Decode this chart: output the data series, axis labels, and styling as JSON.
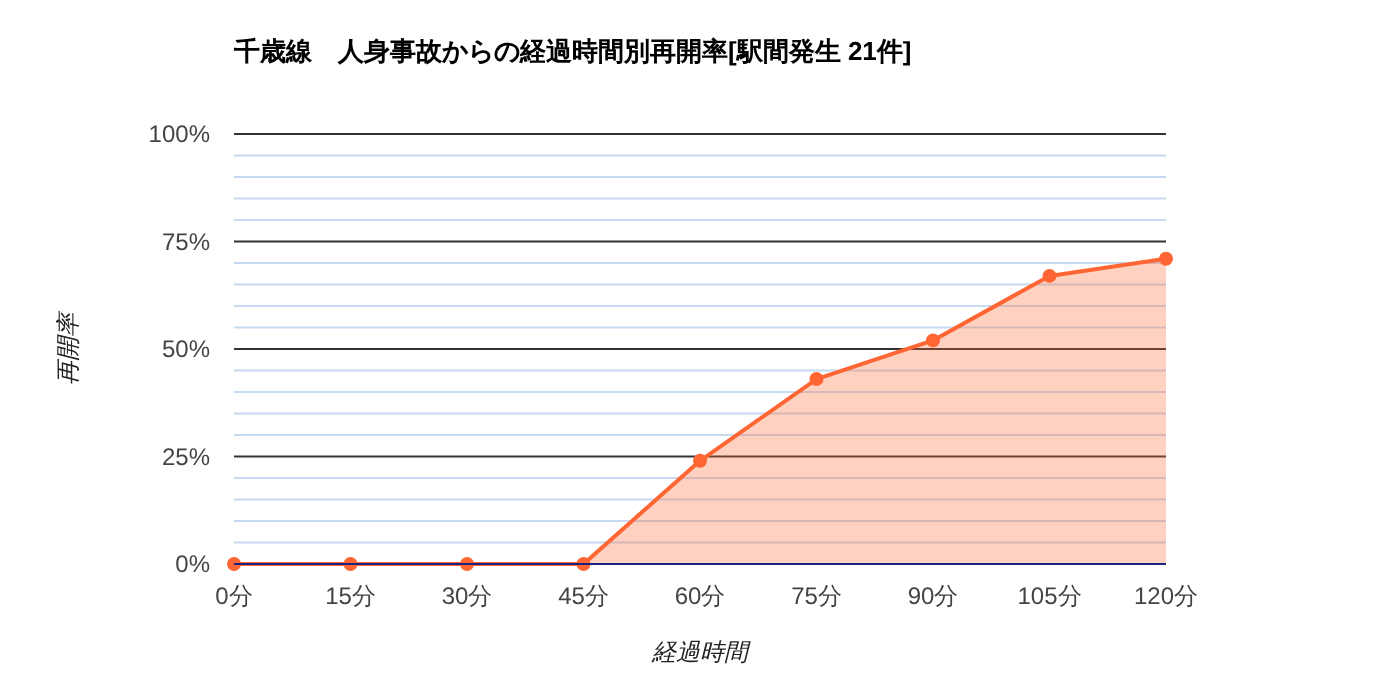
{
  "chart_data": {
    "type": "area",
    "title": "千歳線　人身事故からの経過時間別再開率[駅間発生 21件]",
    "xlabel": "経過時間",
    "ylabel": "再開率",
    "categories": [
      "0分",
      "15分",
      "30分",
      "45分",
      "60分",
      "75分",
      "90分",
      "105分",
      "120分"
    ],
    "series": [
      {
        "color": "#ff6633",
        "values": [
          0,
          0,
          0,
          0,
          24,
          43,
          52,
          67,
          71
        ]
      }
    ],
    "ylim": [
      0,
      100
    ],
    "yticks": [
      {
        "value": 0,
        "label": "0%"
      },
      {
        "value": 5,
        "label": null
      },
      {
        "value": 10,
        "label": null
      },
      {
        "value": 15,
        "label": null
      },
      {
        "value": 20,
        "label": null
      },
      {
        "value": 25,
        "label": "25%"
      },
      {
        "value": 30,
        "label": null
      },
      {
        "value": 35,
        "label": null
      },
      {
        "value": 40,
        "label": null
      },
      {
        "value": 45,
        "label": null
      },
      {
        "value": 50,
        "label": "50%"
      },
      {
        "value": 55,
        "label": null
      },
      {
        "value": 60,
        "label": null
      },
      {
        "value": 65,
        "label": null
      },
      {
        "value": 70,
        "label": null
      },
      {
        "value": 75,
        "label": "75%"
      },
      {
        "value": 80,
        "label": null
      },
      {
        "value": 85,
        "label": null
      },
      {
        "value": 90,
        "label": null
      },
      {
        "value": 95,
        "label": null
      },
      {
        "value": 100,
        "label": "100%"
      }
    ],
    "grid": true,
    "marker": "circle",
    "line_style": "solid"
  }
}
